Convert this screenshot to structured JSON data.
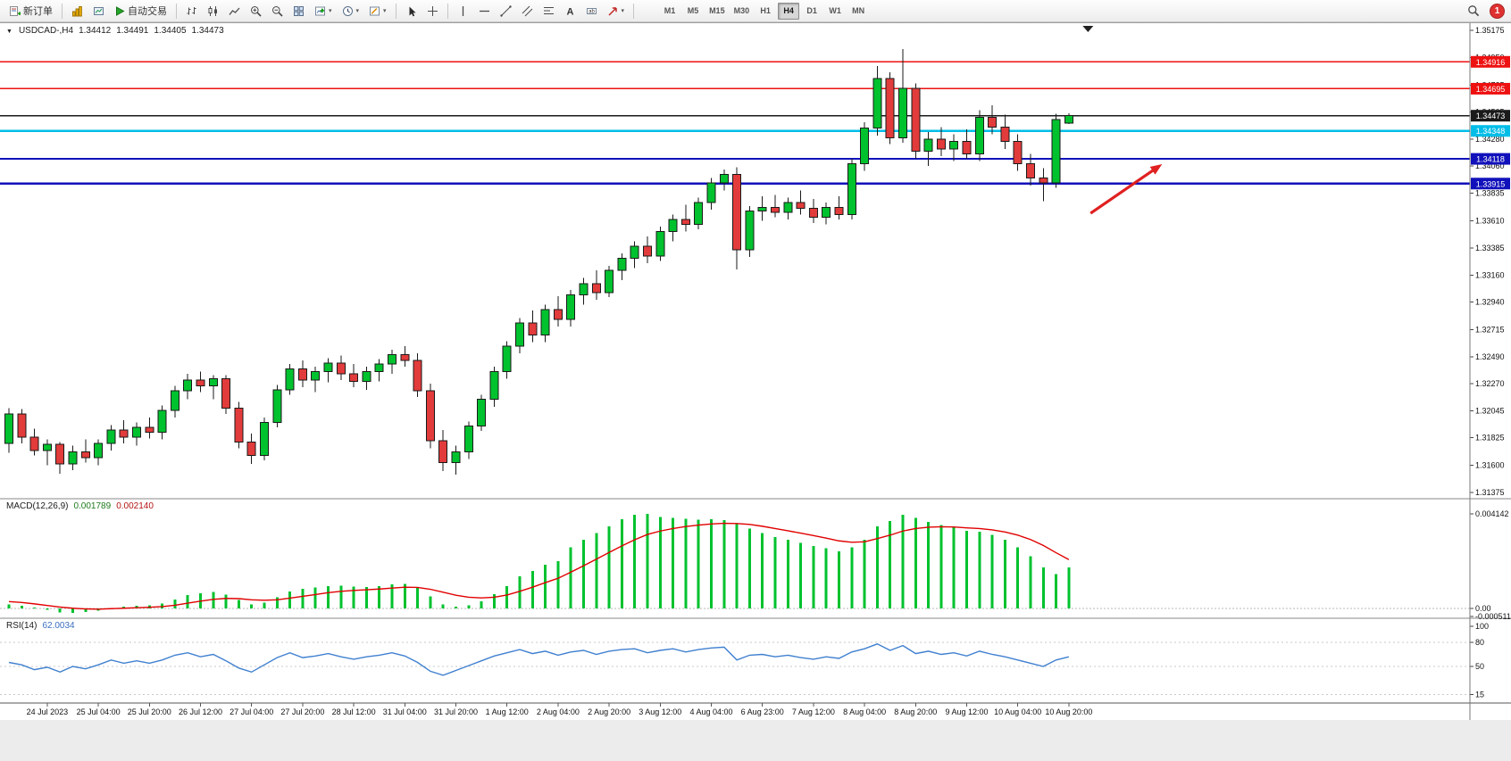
{
  "toolbar": {
    "new_order_label": "新订单",
    "auto_trading_label": "自动交易",
    "timeframes": [
      "M1",
      "M5",
      "M15",
      "M30",
      "H1",
      "H4",
      "D1",
      "W1",
      "MN"
    ],
    "active_timeframe": "H4",
    "notification_count": "1"
  },
  "quote": {
    "symbol": "USDCAD-,H4",
    "open": "1.34412",
    "high": "1.34491",
    "low": "1.34405",
    "close": "1.34473"
  },
  "panels": {
    "macd": {
      "label": "MACD(12,26,9)",
      "main_value": "0.001789",
      "signal_value": "0.002140"
    },
    "rsi": {
      "label": "RSI(14)",
      "value": "62.0034"
    }
  },
  "price_scale": {
    "ticks": [
      "1.35175",
      "1.34950",
      "1.34725",
      "1.34505",
      "1.34280",
      "1.34060",
      "1.33835",
      "1.33610",
      "1.33385",
      "1.33160",
      "1.32940",
      "1.32715",
      "1.32490",
      "1.32270",
      "1.32045",
      "1.31825",
      "1.31600",
      "1.31375"
    ],
    "macd_labels": [
      {
        "text": "0.004142",
        "value": 0.004142
      },
      {
        "text": "0.00",
        "value": 0
      },
      {
        "text": "-0.000511",
        "value": -0.000511
      }
    ],
    "rsi_labels": [
      {
        "text": "100",
        "value": 100
      },
      {
        "text": "80",
        "value": 80
      },
      {
        "text": "50",
        "value": 50
      },
      {
        "text": "15",
        "value": 15
      }
    ]
  },
  "time_axis": {
    "labels": [
      "24 Jul 2023",
      "25 Jul 04:00",
      "25 Jul 20:00",
      "26 Jul 12:00",
      "27 Jul 04:00",
      "27 Jul 20:00",
      "28 Jul 12:00",
      "31 Jul 04:00",
      "31 Jul 20:00",
      "1 Aug 12:00",
      "2 Aug 04:00",
      "2 Aug 20:00",
      "3 Aug 12:00",
      "4 Aug 04:00",
      "6 Aug 23:00",
      "7 Aug 12:00",
      "8 Aug 04:00",
      "8 Aug 20:00",
      "9 Aug 12:00",
      "10 Aug 04:00",
      "10 Aug 20:00"
    ],
    "bar_indices": [
      3,
      7,
      11,
      15,
      19,
      23,
      27,
      31,
      35,
      39,
      43,
      47,
      51,
      55,
      59,
      63,
      67,
      71,
      75,
      79,
      83
    ]
  },
  "colors": {
    "candle_up": "#00c22e",
    "candle_down": "#e23b3b",
    "candle_outline": "#1a1a1a",
    "macd_hist": "#00c22e",
    "macd_signal": "#e00000",
    "rsi_line": "#4080d0",
    "arrow": "#e02020"
  },
  "chart_data": [
    {
      "type": "candlestick",
      "title": "USDCAD H4",
      "ylim": [
        1.3135,
        1.3526
      ],
      "ohlc": [
        [
          1.3178,
          1.3207,
          1.317,
          1.3202
        ],
        [
          1.3202,
          1.3206,
          1.3178,
          1.3183
        ],
        [
          1.3183,
          1.319,
          1.3168,
          1.3172
        ],
        [
          1.3172,
          1.3181,
          1.316,
          1.3177
        ],
        [
          1.3177,
          1.3179,
          1.3153,
          1.3161
        ],
        [
          1.3161,
          1.3176,
          1.3156,
          1.3171
        ],
        [
          1.3171,
          1.3181,
          1.3162,
          1.3166
        ],
        [
          1.3166,
          1.3181,
          1.316,
          1.3178
        ],
        [
          1.3178,
          1.3193,
          1.3172,
          1.3189
        ],
        [
          1.3189,
          1.3197,
          1.3178,
          1.3183
        ],
        [
          1.3183,
          1.3195,
          1.3176,
          1.3191
        ],
        [
          1.3191,
          1.3199,
          1.3182,
          1.3187
        ],
        [
          1.3187,
          1.3209,
          1.3181,
          1.3205
        ],
        [
          1.3205,
          1.3225,
          1.3199,
          1.3221
        ],
        [
          1.3221,
          1.3235,
          1.3214,
          1.323
        ],
        [
          1.323,
          1.3237,
          1.322,
          1.3225
        ],
        [
          1.3225,
          1.3234,
          1.3214,
          1.3231
        ],
        [
          1.3231,
          1.3234,
          1.3202,
          1.3207
        ],
        [
          1.3207,
          1.3212,
          1.3174,
          1.3179
        ],
        [
          1.3179,
          1.3186,
          1.3161,
          1.3168
        ],
        [
          1.3168,
          1.3199,
          1.3164,
          1.3195
        ],
        [
          1.3195,
          1.3226,
          1.3191,
          1.3222
        ],
        [
          1.3222,
          1.3243,
          1.3218,
          1.3239
        ],
        [
          1.3239,
          1.3246,
          1.3224,
          1.323
        ],
        [
          1.323,
          1.3241,
          1.322,
          1.3237
        ],
        [
          1.3237,
          1.3248,
          1.3228,
          1.3244
        ],
        [
          1.3244,
          1.325,
          1.323,
          1.3235
        ],
        [
          1.3235,
          1.3243,
          1.3224,
          1.3229
        ],
        [
          1.3229,
          1.3241,
          1.3222,
          1.3237
        ],
        [
          1.3237,
          1.3247,
          1.3229,
          1.3243
        ],
        [
          1.3243,
          1.3255,
          1.3235,
          1.3251
        ],
        [
          1.3251,
          1.3258,
          1.3241,
          1.3246
        ],
        [
          1.3246,
          1.3252,
          1.3216,
          1.3221
        ],
        [
          1.3221,
          1.3227,
          1.3174,
          1.318
        ],
        [
          1.318,
          1.3189,
          1.3155,
          1.3162
        ],
        [
          1.3162,
          1.3176,
          1.3152,
          1.3171
        ],
        [
          1.3171,
          1.3196,
          1.3165,
          1.3192
        ],
        [
          1.3192,
          1.3218,
          1.3188,
          1.3214
        ],
        [
          1.3214,
          1.3241,
          1.3208,
          1.3237
        ],
        [
          1.3237,
          1.3262,
          1.3231,
          1.3258
        ],
        [
          1.3258,
          1.3281,
          1.3252,
          1.3277
        ],
        [
          1.3277,
          1.3287,
          1.3261,
          1.3267
        ],
        [
          1.3267,
          1.3292,
          1.3261,
          1.3288
        ],
        [
          1.3288,
          1.3299,
          1.3274,
          1.328
        ],
        [
          1.328,
          1.3304,
          1.3274,
          1.33
        ],
        [
          1.33,
          1.3314,
          1.3292,
          1.3309
        ],
        [
          1.3309,
          1.332,
          1.3296,
          1.3302
        ],
        [
          1.3302,
          1.3324,
          1.3298,
          1.332
        ],
        [
          1.332,
          1.3334,
          1.3312,
          1.333
        ],
        [
          1.333,
          1.3344,
          1.3322,
          1.334
        ],
        [
          1.334,
          1.3348,
          1.3326,
          1.3332
        ],
        [
          1.3332,
          1.3356,
          1.3328,
          1.3352
        ],
        [
          1.3352,
          1.3366,
          1.3344,
          1.3362
        ],
        [
          1.3362,
          1.3374,
          1.3352,
          1.3358
        ],
        [
          1.3358,
          1.338,
          1.3354,
          1.3376
        ],
        [
          1.3376,
          1.3396,
          1.337,
          1.3392
        ],
        [
          1.3392,
          1.3403,
          1.3386,
          1.3399
        ],
        [
          1.3399,
          1.3405,
          1.3321,
          1.3337
        ],
        [
          1.3337,
          1.3373,
          1.3331,
          1.3369
        ],
        [
          1.3369,
          1.3381,
          1.3361,
          1.3372
        ],
        [
          1.3372,
          1.3382,
          1.3364,
          1.3368
        ],
        [
          1.3368,
          1.338,
          1.3362,
          1.3376
        ],
        [
          1.3376,
          1.3386,
          1.3366,
          1.3371
        ],
        [
          1.3371,
          1.3379,
          1.3359,
          1.3364
        ],
        [
          1.3364,
          1.3376,
          1.3358,
          1.3372
        ],
        [
          1.3372,
          1.3381,
          1.3362,
          1.3366
        ],
        [
          1.3366,
          1.3412,
          1.3362,
          1.3408
        ],
        [
          1.3408,
          1.3442,
          1.3402,
          1.3437
        ],
        [
          1.3437,
          1.3488,
          1.3431,
          1.3478
        ],
        [
          1.3478,
          1.3483,
          1.3424,
          1.3429
        ],
        [
          1.3429,
          1.3502,
          1.3425,
          1.347
        ],
        [
          1.347,
          1.3474,
          1.3412,
          1.3418
        ],
        [
          1.3418,
          1.3434,
          1.3406,
          1.3428
        ],
        [
          1.3428,
          1.3438,
          1.3414,
          1.342
        ],
        [
          1.342,
          1.3432,
          1.341,
          1.3426
        ],
        [
          1.3426,
          1.3436,
          1.3412,
          1.3416
        ],
        [
          1.3416,
          1.3452,
          1.341,
          1.3446
        ],
        [
          1.3446,
          1.3456,
          1.3432,
          1.3438
        ],
        [
          1.3438,
          1.3448,
          1.342,
          1.3426
        ],
        [
          1.3426,
          1.3432,
          1.3402,
          1.3408
        ],
        [
          1.3408,
          1.3416,
          1.339,
          1.3396
        ],
        [
          1.3396,
          1.3404,
          1.3377,
          1.3392
        ],
        [
          1.3392,
          1.3449,
          1.3388,
          1.3444
        ],
        [
          1.34412,
          1.34491,
          1.34405,
          1.34473
        ]
      ],
      "hlines": [
        {
          "price": 1.34916,
          "label": "1.34916",
          "color": "#ee1111",
          "width": 1.6
        },
        {
          "price": 1.34695,
          "label": "1.34695",
          "color": "#ee1111",
          "width": 1.6
        },
        {
          "price": 1.34473,
          "label": "1.34473",
          "color": "#1a1a1a",
          "width": 1.2,
          "role": "bid-price-line"
        },
        {
          "price": 1.34348,
          "label": "1.34348",
          "color": "#00bde8",
          "width": 2.2
        },
        {
          "price": 1.34118,
          "label": "1.34118",
          "color": "#1111bb",
          "width": 2.2
        },
        {
          "price": 1.33915,
          "label": "1.33915",
          "color": "#1111bb",
          "width": 2.2
        }
      ],
      "annotations": [
        {
          "type": "arrow",
          "x1_bar": 84.7,
          "price1": 1.33671,
          "x2_bar": 90.3,
          "price2": 1.34075
        }
      ],
      "shift_marker_bar": 84.5
    },
    {
      "type": "bar",
      "name": "MACD(12,26,9)",
      "ylim": [
        -0.00051,
        0.00481
      ],
      "values": [
        0.00018,
        0.00012,
        4e-05,
        -6e-05,
        -0.00018,
        -0.0002,
        -0.00016,
        -0.0001,
        2e-05,
        8e-05,
        0.00012,
        0.00014,
        0.00022,
        0.0004,
        0.00058,
        0.00066,
        0.00072,
        0.0006,
        0.00038,
        0.00018,
        0.00026,
        0.00048,
        0.00074,
        0.00086,
        0.00092,
        0.00098,
        0.001,
        0.00096,
        0.00094,
        0.00098,
        0.00106,
        0.00108,
        0.0009,
        0.00052,
        0.00018,
        8e-05,
        0.00014,
        0.00032,
        0.00062,
        0.00098,
        0.0014,
        0.00164,
        0.00192,
        0.00208,
        0.00268,
        0.003,
        0.0033,
        0.0036,
        0.0039,
        0.0041,
        0.00414,
        0.004,
        0.00396,
        0.00392,
        0.00388,
        0.0039,
        0.00386,
        0.0037,
        0.0035,
        0.0033,
        0.00312,
        0.003,
        0.00288,
        0.00274,
        0.00264,
        0.0025,
        0.00268,
        0.003,
        0.0036,
        0.00382,
        0.0041,
        0.00396,
        0.0038,
        0.00366,
        0.00356,
        0.0034,
        0.00336,
        0.00322,
        0.003,
        0.00268,
        0.00228,
        0.0018,
        0.0015,
        0.00179
      ],
      "signal": [
        0.0003,
        0.00026,
        0.0002,
        0.00013,
        6e-05,
        1e-05,
        -2e-05,
        -3e-05,
        -1e-05,
        1e-05,
        3e-05,
        5e-05,
        8e-05,
        0.00014,
        0.00023,
        0.00032,
        0.0004,
        0.00044,
        0.00043,
        0.00038,
        0.00036,
        0.00038,
        0.00045,
        0.00053,
        0.00061,
        0.00069,
        0.00075,
        0.00079,
        0.00082,
        0.00085,
        0.00089,
        0.00093,
        0.00092,
        0.00084,
        0.00071,
        0.00058,
        0.00049,
        0.00046,
        0.00049,
        0.00059,
        0.00075,
        0.00093,
        0.00113,
        0.00132,
        0.00159,
        0.00187,
        0.00216,
        0.00245,
        0.00274,
        0.00301,
        0.00324,
        0.00339,
        0.0035,
        0.00359,
        0.00365,
        0.0037,
        0.00373,
        0.00372,
        0.00368,
        0.0036,
        0.0035,
        0.0034,
        0.0033,
        0.00319,
        0.00308,
        0.00296,
        0.0029,
        0.00292,
        0.00306,
        0.00321,
        0.00339,
        0.0035,
        0.00356,
        0.00358,
        0.00357,
        0.00353,
        0.0035,
        0.00344,
        0.00335,
        0.00321,
        0.00302,
        0.00276,
        0.00244,
        0.00214
      ]
    },
    {
      "type": "line",
      "name": "RSI(14)",
      "ylim": [
        0,
        100
      ],
      "levels": [
        80,
        50,
        15
      ],
      "values": [
        55,
        52,
        46,
        49,
        43,
        50,
        47,
        52,
        58,
        54,
        57,
        54,
        58,
        64,
        67,
        62,
        65,
        57,
        48,
        43,
        52,
        61,
        67,
        61,
        63,
        66,
        62,
        59,
        62,
        64,
        67,
        63,
        55,
        44,
        39,
        45,
        51,
        57,
        63,
        67,
        71,
        66,
        69,
        64,
        68,
        70,
        65,
        69,
        71,
        72,
        67,
        70,
        72,
        68,
        71,
        73,
        74,
        58,
        64,
        65,
        62,
        64,
        61,
        59,
        62,
        60,
        68,
        72,
        78,
        70,
        76,
        66,
        69,
        65,
        67,
        63,
        69,
        65,
        62,
        58,
        54,
        50,
        58,
        62
      ]
    }
  ]
}
